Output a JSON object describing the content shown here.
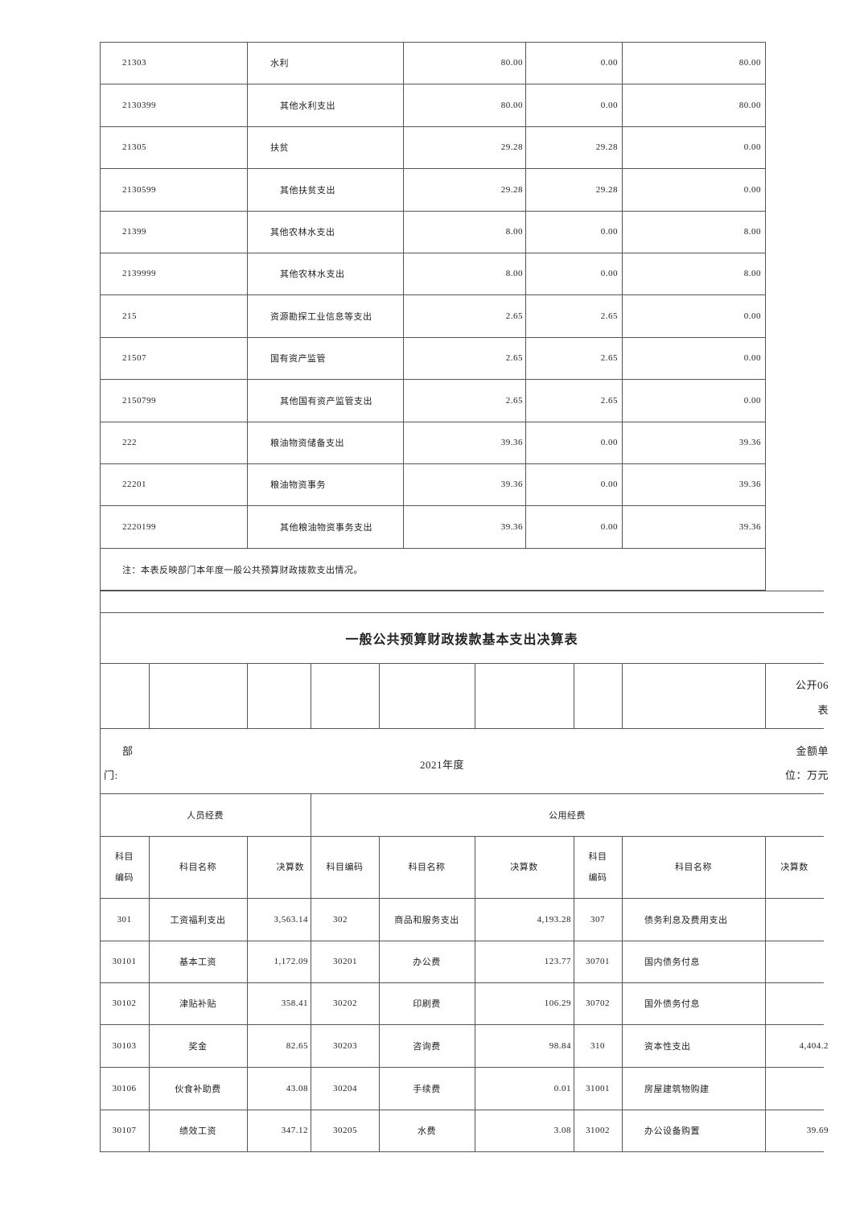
{
  "upper_table": {
    "rows": [
      {
        "code": "21303",
        "name": "水利",
        "indent": false,
        "v1": "80.00",
        "v2": "0.00",
        "v3": "80.00"
      },
      {
        "code": "2130399",
        "name": "其他水利支出",
        "indent": true,
        "v1": "80.00",
        "v2": "0.00",
        "v3": "80.00"
      },
      {
        "code": "21305",
        "name": "扶贫",
        "indent": false,
        "v1": "29.28",
        "v2": "29.28",
        "v3": "0.00"
      },
      {
        "code": "2130599",
        "name": "其他扶贫支出",
        "indent": true,
        "v1": "29.28",
        "v2": "29.28",
        "v3": "0.00"
      },
      {
        "code": "21399",
        "name": "其他农林水支出",
        "indent": false,
        "v1": "8.00",
        "v2": "0.00",
        "v3": "8.00"
      },
      {
        "code": "2139999",
        "name": "其他农林水支出",
        "indent": true,
        "v1": "8.00",
        "v2": "0.00",
        "v3": "8.00"
      },
      {
        "code": "215",
        "name": "资源勘探工业信息等支出",
        "indent": false,
        "v1": "2.65",
        "v2": "2.65",
        "v3": "0.00"
      },
      {
        "code": "21507",
        "name": "国有资产监管",
        "indent": false,
        "v1": "2.65",
        "v2": "2.65",
        "v3": "0.00"
      },
      {
        "code": "2150799",
        "name": "其他国有资产监管支出",
        "indent": true,
        "v1": "2.65",
        "v2": "2.65",
        "v3": "0.00"
      },
      {
        "code": "222",
        "name": "粮油物资储备支出",
        "indent": false,
        "v1": "39.36",
        "v2": "0.00",
        "v3": "39.36"
      },
      {
        "code": "22201",
        "name": "粮油物资事务",
        "indent": false,
        "v1": "39.36",
        "v2": "0.00",
        "v3": "39.36"
      },
      {
        "code": "2220199",
        "name": "其他粮油物资事务支出",
        "indent": true,
        "v1": "39.36",
        "v2": "0.00",
        "v3": "39.36"
      }
    ],
    "note": "注：本表反映部门本年度一般公共预算财政拨款支出情况。"
  },
  "lower_table": {
    "title": "一般公共预算财政拨款基本支出决算表",
    "table_no": "公开06",
    "table_no_suffix": "表",
    "dept_label_1": "部",
    "dept_label_2": "门:",
    "year": "2021年度",
    "unit_1": "金额单",
    "unit_2": "位：万元",
    "group_personnel": "人员经费",
    "group_public": "公用经费",
    "headers": [
      "科目\n编码",
      "科目名称",
      "决算数",
      "科目编码",
      "科目名称",
      "决算数",
      "科目\n编码",
      "科目名称",
      "决算数"
    ],
    "rows": [
      [
        "301",
        "工资福利支出",
        "3,563.14",
        "302",
        "商品和服务支出",
        "4,193.28",
        "307",
        "债务利息及费用支出",
        ""
      ],
      [
        "30101",
        "基本工资",
        "1,172.09",
        "30201",
        "办公费",
        "123.77",
        "30701",
        "国内债务付息",
        ""
      ],
      [
        "30102",
        "津贴补贴",
        "358.41",
        "30202",
        "印刷费",
        "106.29",
        "30702",
        "国外债务付息",
        ""
      ],
      [
        "30103",
        "奖金",
        "82.65",
        "30203",
        "咨询费",
        "98.84",
        "310",
        "资本性支出",
        "4,404.2"
      ],
      [
        "30106",
        "伙食补助费",
        "43.08",
        "30204",
        "手续费",
        "0.01",
        "31001",
        "房屋建筑物购建",
        ""
      ],
      [
        "30107",
        "绩效工资",
        "347.12",
        "30205",
        "水费",
        "3.08",
        "31002",
        "办公设备购置",
        "39.69"
      ]
    ]
  }
}
